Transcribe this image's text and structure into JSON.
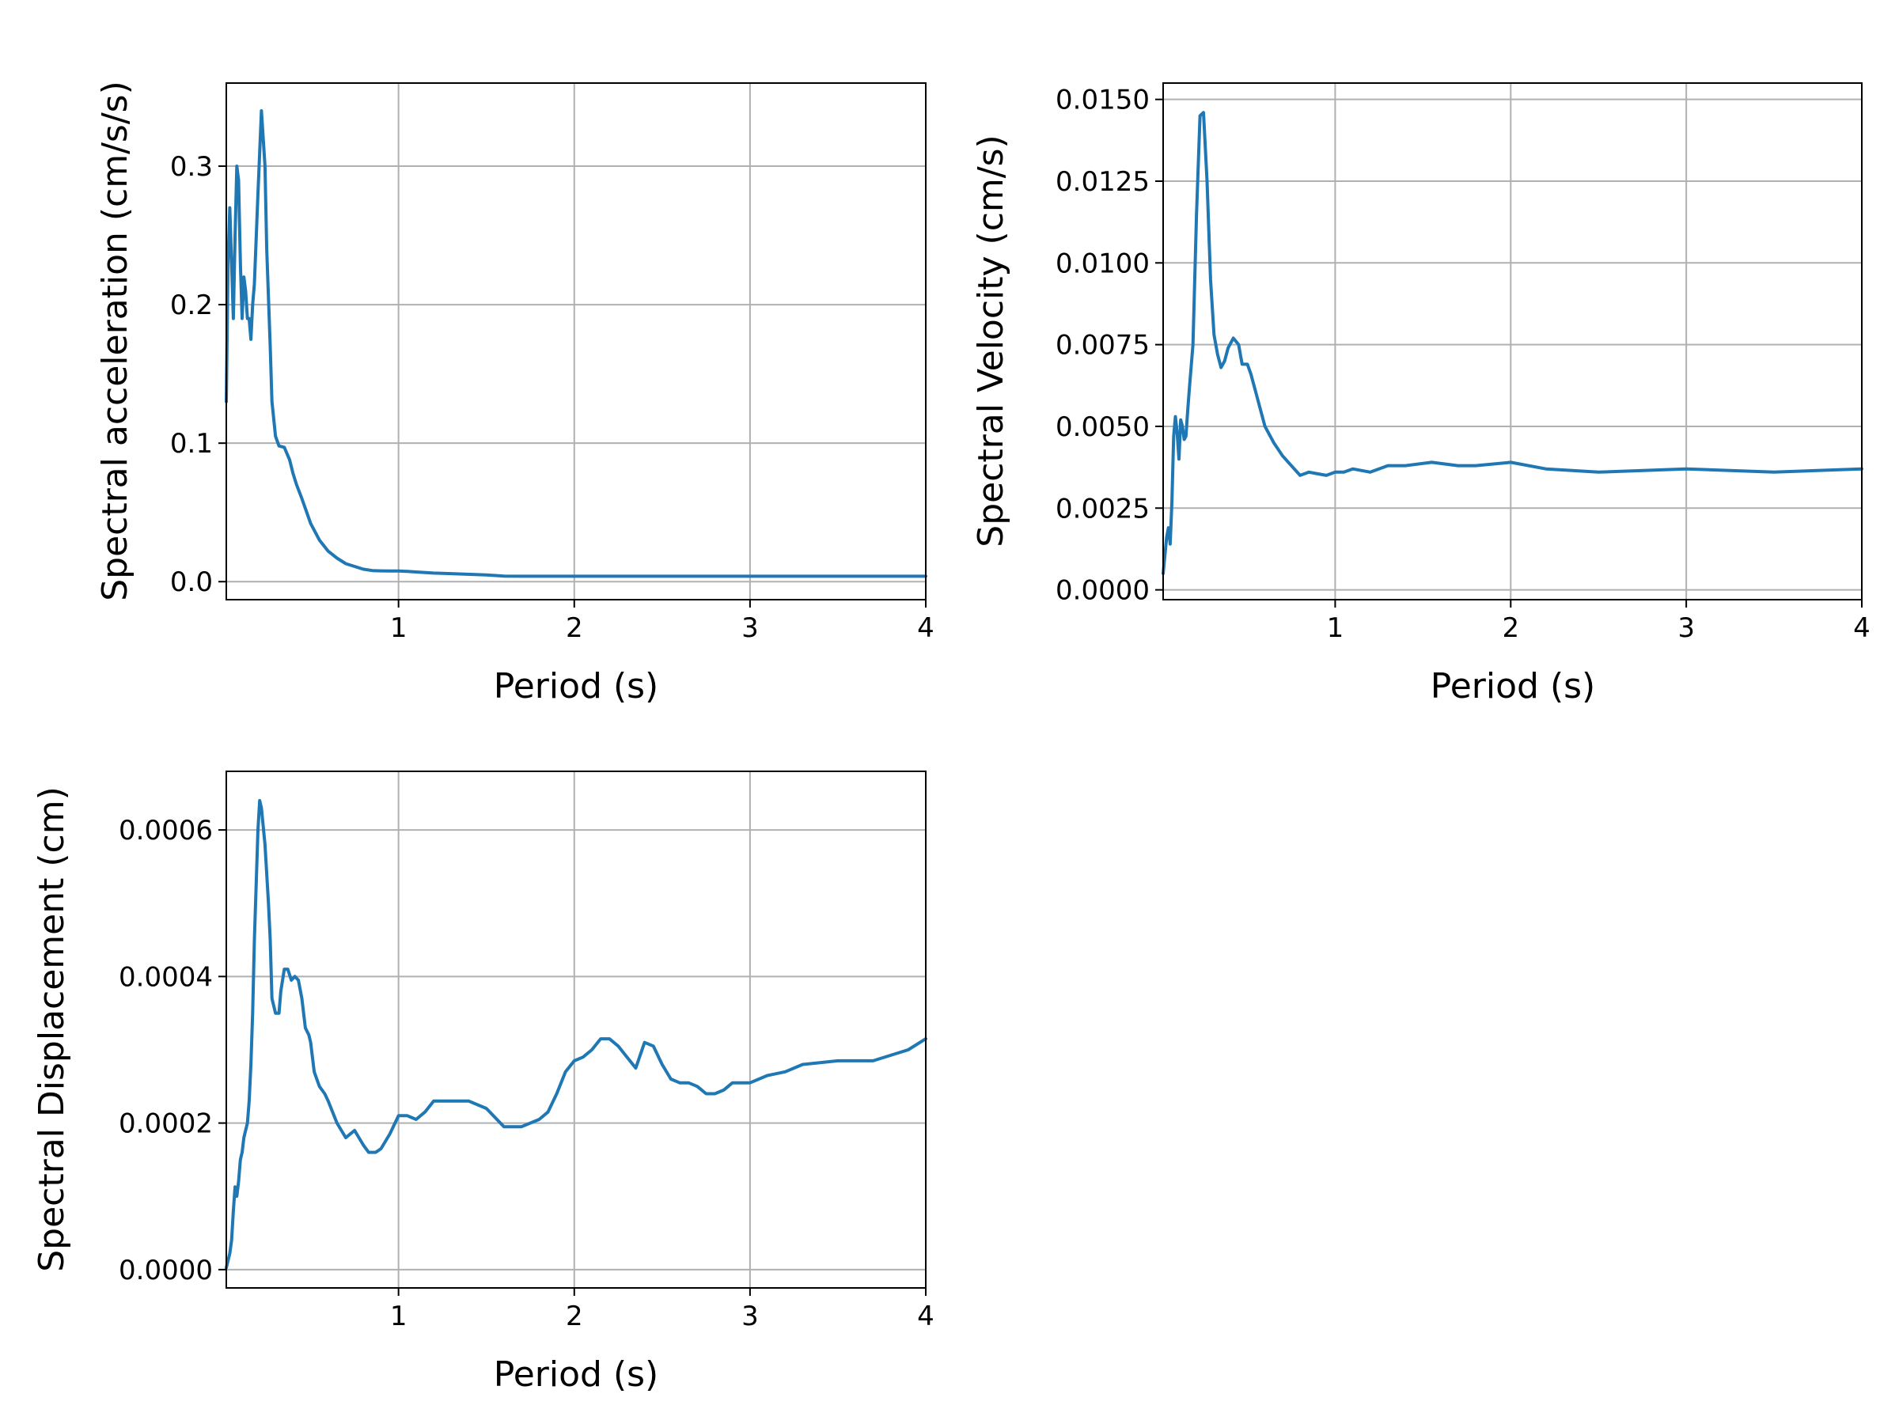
{
  "chart_data": [
    {
      "type": "line",
      "xlabel": "Period (s)",
      "ylabel": "Spectral acceleration (cm/s/s)",
      "xlim": [
        0.02,
        4.0
      ],
      "ylim": [
        -0.013,
        0.36
      ],
      "xticks": [
        1,
        2,
        3,
        4
      ],
      "xtick_labels": [
        "1",
        "2",
        "3",
        "4"
      ],
      "yticks": [
        0.0,
        0.1,
        0.2,
        0.3
      ],
      "ytick_labels": [
        "0.0",
        "0.1",
        "0.2",
        "0.3"
      ],
      "grid": true,
      "line_color": "#1f77b4",
      "series": [
        {
          "x": [
            0.02,
            0.03,
            0.04,
            0.05,
            0.06,
            0.07,
            0.08,
            0.09,
            0.1,
            0.11,
            0.12,
            0.13,
            0.14,
            0.15,
            0.16,
            0.17,
            0.18,
            0.2,
            0.22,
            0.24,
            0.25,
            0.27,
            0.28,
            0.3,
            0.32,
            0.35,
            0.38,
            0.4,
            0.42,
            0.45,
            0.5,
            0.55,
            0.6,
            0.65,
            0.7,
            0.75,
            0.8,
            0.85,
            0.9,
            0.95,
            1.0,
            1.05,
            1.1,
            1.2,
            1.3,
            1.5,
            1.6,
            1.7,
            2.0,
            2.5,
            3.0,
            3.5,
            4.0
          ],
          "y": [
            0.13,
            0.23,
            0.27,
            0.23,
            0.19,
            0.25,
            0.3,
            0.29,
            0.23,
            0.19,
            0.22,
            0.21,
            0.19,
            0.19,
            0.175,
            0.2,
            0.215,
            0.28,
            0.34,
            0.3,
            0.24,
            0.17,
            0.13,
            0.105,
            0.098,
            0.097,
            0.088,
            0.078,
            0.07,
            0.06,
            0.042,
            0.03,
            0.022,
            0.017,
            0.013,
            0.011,
            0.009,
            0.008,
            0.0078,
            0.0077,
            0.0077,
            0.0074,
            0.007,
            0.0062,
            0.0058,
            0.0048,
            0.004,
            0.0039,
            0.0039,
            0.0039,
            0.0039,
            0.0039,
            0.0039
          ]
        }
      ]
    },
    {
      "type": "line",
      "xlabel": "Period (s)",
      "ylabel": "Spectral Velocity (cm/s)",
      "xlim": [
        0.02,
        4.0
      ],
      "ylim": [
        -0.0003,
        0.0155
      ],
      "xticks": [
        1,
        2,
        3,
        4
      ],
      "xtick_labels": [
        "1",
        "2",
        "3",
        "4"
      ],
      "yticks": [
        0.0,
        0.0025,
        0.005,
        0.0075,
        0.01,
        0.0125,
        0.015
      ],
      "ytick_labels": [
        "0.0000",
        "0.0025",
        "0.0050",
        "0.0075",
        "0.0100",
        "0.0125",
        "0.0150"
      ],
      "grid": true,
      "line_color": "#1f77b4",
      "series": [
        {
          "x": [
            0.02,
            0.04,
            0.05,
            0.06,
            0.07,
            0.08,
            0.09,
            0.1,
            0.11,
            0.12,
            0.13,
            0.14,
            0.15,
            0.16,
            0.17,
            0.19,
            0.21,
            0.23,
            0.25,
            0.27,
            0.29,
            0.31,
            0.33,
            0.35,
            0.37,
            0.39,
            0.42,
            0.45,
            0.47,
            0.5,
            0.52,
            0.55,
            0.58,
            0.6,
            0.65,
            0.7,
            0.75,
            0.8,
            0.85,
            0.9,
            0.95,
            1.0,
            1.05,
            1.1,
            1.2,
            1.3,
            1.4,
            1.55,
            1.7,
            1.8,
            2.0,
            2.2,
            2.5,
            3.0,
            3.5,
            4.0
          ],
          "y": [
            0.0005,
            0.0016,
            0.0019,
            0.0014,
            0.0027,
            0.0047,
            0.0053,
            0.0048,
            0.004,
            0.0052,
            0.005,
            0.0046,
            0.0047,
            0.0055,
            0.0062,
            0.0075,
            0.0115,
            0.0145,
            0.0146,
            0.0125,
            0.0095,
            0.0078,
            0.0072,
            0.0068,
            0.007,
            0.0074,
            0.0077,
            0.0075,
            0.0069,
            0.0069,
            0.0066,
            0.006,
            0.0054,
            0.005,
            0.0045,
            0.0041,
            0.0038,
            0.0035,
            0.0036,
            0.00355,
            0.0035,
            0.0036,
            0.0036,
            0.0037,
            0.0036,
            0.0038,
            0.0038,
            0.0039,
            0.0038,
            0.0038,
            0.0039,
            0.0037,
            0.0036,
            0.0037,
            0.0036,
            0.0037
          ]
        }
      ]
    },
    {
      "type": "line",
      "xlabel": "Period (s)",
      "ylabel": "Spectral Displacement (cm)",
      "xlim": [
        0.02,
        4.0
      ],
      "ylim": [
        -2.5e-05,
        0.00068
      ],
      "xticks": [
        1,
        2,
        3,
        4
      ],
      "xtick_labels": [
        "1",
        "2",
        "3",
        "4"
      ],
      "yticks": [
        0.0,
        0.0002,
        0.0004,
        0.0006
      ],
      "ytick_labels": [
        "0.0000",
        "0.0002",
        "0.0004",
        "0.0006"
      ],
      "grid": true,
      "line_color": "#1f77b4",
      "series": [
        {
          "x": [
            0.02,
            0.04,
            0.05,
            0.06,
            0.07,
            0.08,
            0.09,
            0.1,
            0.11,
            0.12,
            0.13,
            0.14,
            0.15,
            0.16,
            0.17,
            0.18,
            0.2,
            0.21,
            0.22,
            0.24,
            0.26,
            0.27,
            0.28,
            0.3,
            0.32,
            0.33,
            0.35,
            0.37,
            0.39,
            0.41,
            0.43,
            0.45,
            0.47,
            0.49,
            0.5,
            0.52,
            0.55,
            0.58,
            0.6,
            0.65,
            0.7,
            0.75,
            0.8,
            0.83,
            0.87,
            0.9,
            0.95,
            1.0,
            1.05,
            1.1,
            1.15,
            1.2,
            1.3,
            1.4,
            1.5,
            1.6,
            1.7,
            1.8,
            1.85,
            1.9,
            1.95,
            2.0,
            2.05,
            2.1,
            2.15,
            2.2,
            2.25,
            2.3,
            2.35,
            2.4,
            2.45,
            2.5,
            2.55,
            2.6,
            2.65,
            2.7,
            2.75,
            2.8,
            2.85,
            2.9,
            2.95,
            3.0,
            3.1,
            3.2,
            3.3,
            3.5,
            3.7,
            3.9,
            4.0
          ],
          "y": [
            2.5e-06,
            2.2e-05,
            4e-05,
            8e-05,
            0.000113,
            0.0001,
            0.00012,
            0.00015,
            0.00016,
            0.00018,
            0.00019,
            0.0002,
            0.00023,
            0.00028,
            0.00035,
            0.00045,
            0.0006,
            0.00064,
            0.00063,
            0.00058,
            0.0005,
            0.00045,
            0.00037,
            0.00035,
            0.00035,
            0.00038,
            0.00041,
            0.00041,
            0.000395,
            0.0004,
            0.000395,
            0.00037,
            0.00033,
            0.00032,
            0.00031,
            0.00027,
            0.00025,
            0.00024,
            0.00023,
            0.0002,
            0.00018,
            0.00019,
            0.00017,
            0.00016,
            0.00016,
            0.000165,
            0.000185,
            0.00021,
            0.00021,
            0.000205,
            0.000215,
            0.00023,
            0.00023,
            0.00023,
            0.00022,
            0.000195,
            0.000195,
            0.000205,
            0.000215,
            0.00024,
            0.00027,
            0.000285,
            0.00029,
            0.0003,
            0.000315,
            0.000315,
            0.000305,
            0.00029,
            0.000275,
            0.00031,
            0.000305,
            0.00028,
            0.00026,
            0.000255,
            0.000255,
            0.00025,
            0.00024,
            0.00024,
            0.000245,
            0.000255,
            0.000255,
            0.000255,
            0.000265,
            0.00027,
            0.00028,
            0.000285,
            0.000285,
            0.0003,
            0.000315
          ]
        }
      ]
    }
  ]
}
